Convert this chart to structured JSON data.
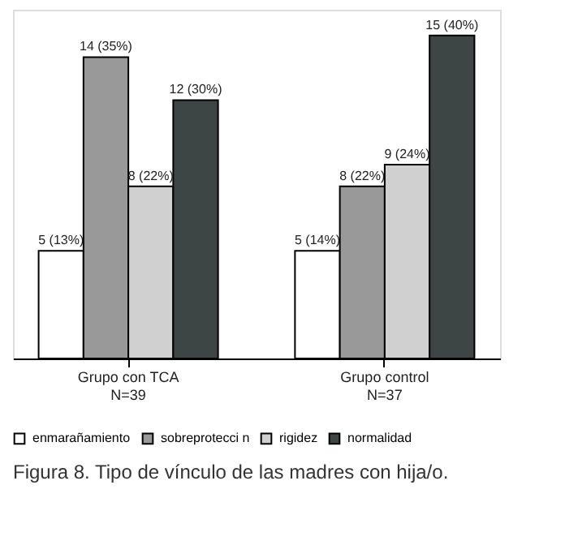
{
  "chart_data": {
    "type": "bar",
    "categories": [
      "Grupo con TCA\nN=39",
      "Grupo control\nN=37"
    ],
    "series": [
      {
        "name": "enmarañamiento",
        "color": "#ffffff",
        "values": [
          5,
          5
        ],
        "value_labels": [
          "5 (13%)",
          "5 (14%)"
        ]
      },
      {
        "name": "sobreprotecci n",
        "color": "#999999",
        "values": [
          14,
          8
        ],
        "value_labels": [
          "14 (35%)",
          "8 (22%)"
        ]
      },
      {
        "name": "rigidez",
        "color": "#d0d0d0",
        "values": [
          8,
          9
        ],
        "value_labels": [
          "8 (22%)",
          "9 (24%)"
        ]
      },
      {
        "name": "normalidad",
        "color": "#3d4545",
        "values": [
          12,
          15
        ],
        "value_labels": [
          "12 (30%)",
          "15 (40%)"
        ]
      }
    ],
    "legend": "bottom",
    "grid": false,
    "annotations": [
      "Figura 8. Tipo de vínculo de las madres con hija/o."
    ]
  }
}
